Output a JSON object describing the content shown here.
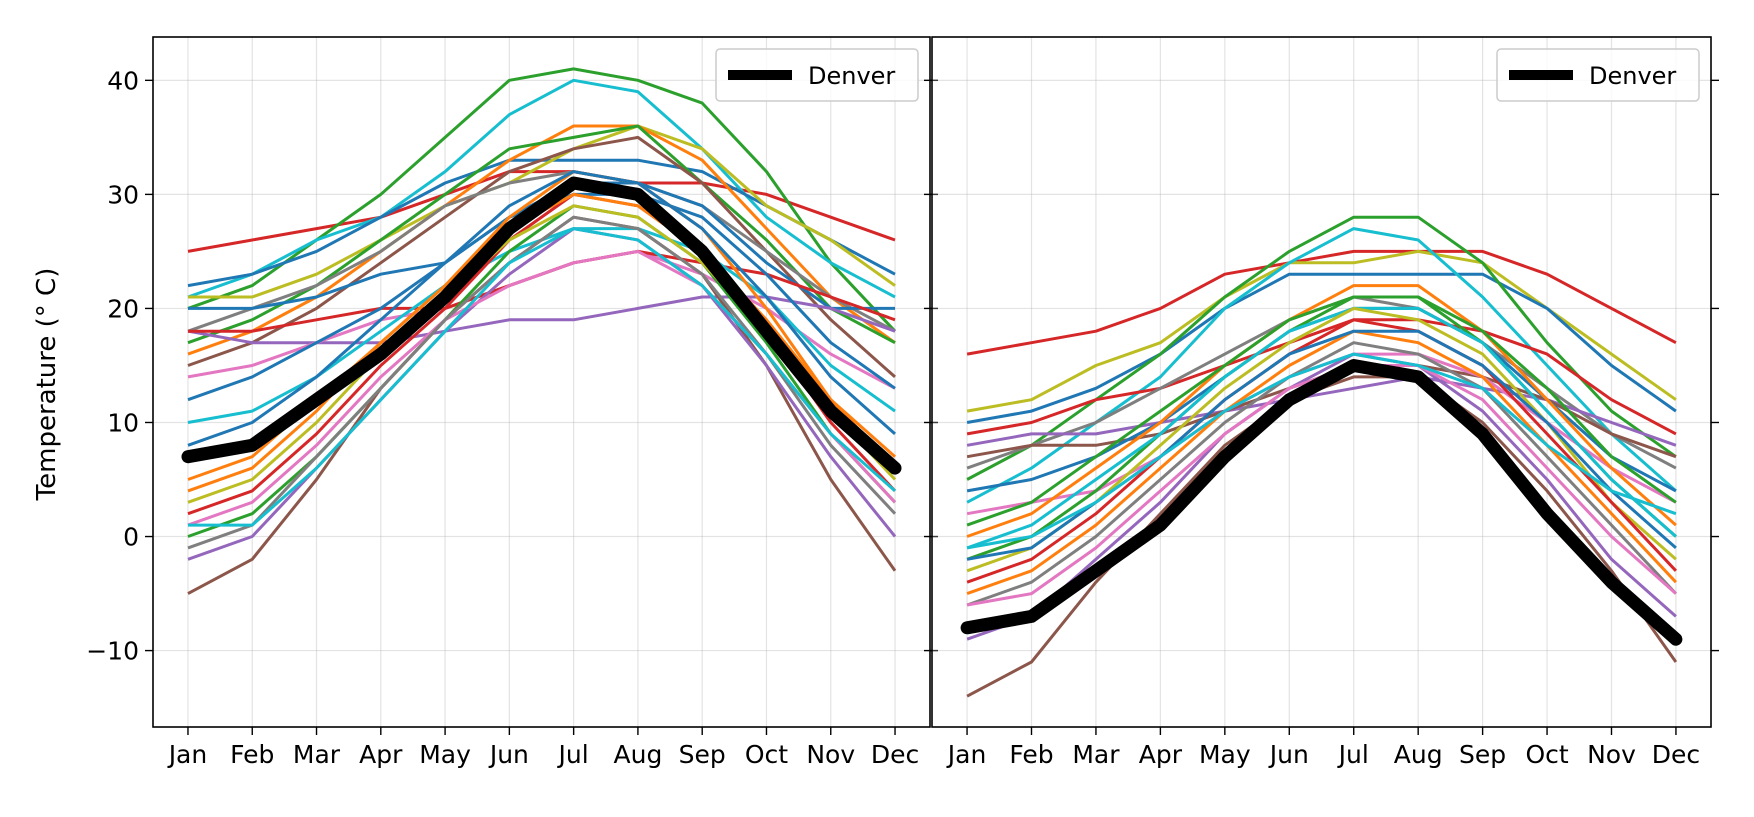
{
  "chart_data": [
    {
      "type": "line",
      "title": "",
      "xlabel": "",
      "ylabel": "Temperature (° C)",
      "categories": [
        "Jan",
        "Feb",
        "Mar",
        "Apr",
        "May",
        "Jun",
        "Jul",
        "Aug",
        "Sep",
        "Oct",
        "Nov",
        "Dec"
      ],
      "ylim": [
        -16.7,
        43.8
      ],
      "yticks": [
        -10,
        0,
        10,
        20,
        30,
        40
      ],
      "grid": true,
      "legend": {
        "position": "top-right",
        "entries": [
          "Denver"
        ]
      },
      "highlight": {
        "name": "Denver",
        "color": "#000000",
        "values": [
          7,
          8,
          12,
          16,
          21,
          27,
          31,
          30,
          25,
          18,
          11,
          6
        ]
      },
      "series": [
        {
          "color": "#d62728",
          "values": [
            25,
            26,
            27,
            28,
            30,
            32,
            32,
            31,
            31,
            30,
            28,
            26
          ]
        },
        {
          "color": "#2ca02c",
          "values": [
            20,
            22,
            26,
            30,
            35,
            40,
            41,
            40,
            38,
            32,
            24,
            18
          ]
        },
        {
          "color": "#17becf",
          "values": [
            21,
            23,
            26,
            28,
            32,
            37,
            40,
            39,
            34,
            28,
            24,
            21
          ]
        },
        {
          "color": "#1f77b4",
          "values": [
            22,
            23,
            25,
            28,
            31,
            33,
            33,
            33,
            32,
            29,
            26,
            23
          ]
        },
        {
          "color": "#bcbd22",
          "values": [
            21,
            21,
            23,
            26,
            29,
            31,
            34,
            36,
            34,
            29,
            26,
            22
          ]
        },
        {
          "color": "#ff7f0e",
          "values": [
            16,
            18,
            21,
            25,
            29,
            33,
            36,
            36,
            33,
            27,
            21,
            17
          ]
        },
        {
          "color": "#2ca02c",
          "values": [
            17,
            19,
            22,
            26,
            30,
            34,
            35,
            36,
            31,
            26,
            20,
            17
          ]
        },
        {
          "color": "#8c564b",
          "values": [
            15,
            17,
            20,
            24,
            28,
            32,
            34,
            35,
            31,
            25,
            19,
            14
          ]
        },
        {
          "color": "#7f7f7f",
          "values": [
            18,
            20,
            22,
            25,
            29,
            31,
            32,
            31,
            29,
            25,
            21,
            18
          ]
        },
        {
          "color": "#1f77b4",
          "values": [
            20,
            20,
            21,
            23,
            24,
            28,
            31,
            31,
            29,
            24,
            20,
            20
          ]
        },
        {
          "color": "#9467bd",
          "values": [
            18,
            17,
            17,
            17,
            18,
            19,
            19,
            20,
            21,
            21,
            20,
            18
          ]
        },
        {
          "color": "#e377c2",
          "values": [
            14,
            15,
            17,
            19,
            20,
            22,
            24,
            25,
            23,
            20,
            16,
            13
          ]
        },
        {
          "color": "#d62728",
          "values": [
            18,
            18,
            19,
            20,
            20,
            22,
            24,
            25,
            24,
            23,
            21,
            19
          ]
        },
        {
          "color": "#17becf",
          "values": [
            10,
            11,
            14,
            18,
            22,
            25,
            27,
            27,
            25,
            21,
            15,
            11
          ]
        },
        {
          "color": "#1f77b4",
          "values": [
            12,
            14,
            17,
            20,
            24,
            28,
            30,
            30,
            28,
            23,
            17,
            13
          ]
        },
        {
          "color": "#ff7f0e",
          "values": [
            5,
            7,
            12,
            17,
            22,
            28,
            32,
            31,
            27,
            20,
            12,
            6
          ]
        },
        {
          "color": "#2ca02c",
          "values": [
            0,
            2,
            7,
            13,
            19,
            25,
            29,
            28,
            24,
            17,
            9,
            3
          ]
        },
        {
          "color": "#d62728",
          "values": [
            2,
            4,
            9,
            15,
            20,
            26,
            30,
            29,
            25,
            18,
            10,
            4
          ]
        },
        {
          "color": "#8c564b",
          "values": [
            -5,
            -2,
            5,
            13,
            19,
            24,
            28,
            27,
            23,
            15,
            5,
            -3
          ]
        },
        {
          "color": "#9467bd",
          "values": [
            -2,
            0,
            6,
            12,
            18,
            23,
            27,
            26,
            22,
            15,
            7,
            0
          ]
        },
        {
          "color": "#e377c2",
          "values": [
            1,
            3,
            8,
            14,
            19,
            22,
            24,
            25,
            22,
            16,
            9,
            3
          ]
        },
        {
          "color": "#7f7f7f",
          "values": [
            -1,
            1,
            7,
            13,
            19,
            24,
            28,
            27,
            23,
            16,
            8,
            2
          ]
        },
        {
          "color": "#bcbd22",
          "values": [
            3,
            5,
            10,
            16,
            21,
            26,
            29,
            28,
            24,
            18,
            11,
            5
          ]
        },
        {
          "color": "#17becf",
          "values": [
            1,
            1,
            6,
            12,
            18,
            24,
            27,
            26,
            22,
            16,
            9,
            4
          ]
        },
        {
          "color": "#ff7f0e",
          "values": [
            4,
            6,
            11,
            17,
            22,
            27,
            30,
            29,
            25,
            19,
            12,
            7
          ]
        },
        {
          "color": "#1f77b4",
          "values": [
            8,
            10,
            14,
            19,
            24,
            29,
            32,
            31,
            27,
            21,
            14,
            9
          ]
        }
      ]
    },
    {
      "type": "line",
      "title": "",
      "xlabel": "",
      "ylabel": "",
      "categories": [
        "Jan",
        "Feb",
        "Mar",
        "Apr",
        "May",
        "Jun",
        "Jul",
        "Aug",
        "Sep",
        "Oct",
        "Nov",
        "Dec"
      ],
      "ylim": [
        -16.7,
        43.8
      ],
      "yticks": [
        -10,
        0,
        10,
        20,
        30,
        40
      ],
      "grid": true,
      "legend": {
        "position": "top-right",
        "entries": [
          "Denver"
        ]
      },
      "highlight": {
        "name": "Denver",
        "color": "#000000",
        "values": [
          -8,
          -7,
          -3,
          1,
          7,
          12,
          15,
          14,
          9,
          2,
          -4,
          -9
        ]
      },
      "series": [
        {
          "color": "#d62728",
          "values": [
            16,
            17,
            18,
            20,
            23,
            24,
            25,
            25,
            25,
            23,
            20,
            17
          ]
        },
        {
          "color": "#bcbd22",
          "values": [
            11,
            12,
            15,
            17,
            21,
            24,
            24,
            25,
            24,
            20,
            16,
            12
          ]
        },
        {
          "color": "#1f77b4",
          "values": [
            10,
            11,
            13,
            16,
            20,
            23,
            23,
            23,
            23,
            20,
            15,
            11
          ]
        },
        {
          "color": "#2ca02c",
          "values": [
            5,
            8,
            12,
            16,
            21,
            25,
            28,
            28,
            24,
            17,
            11,
            7
          ]
        },
        {
          "color": "#17becf",
          "values": [
            3,
            6,
            10,
            14,
            20,
            24,
            27,
            26,
            21,
            15,
            9,
            4
          ]
        },
        {
          "color": "#d62728",
          "values": [
            9,
            10,
            12,
            13,
            15,
            17,
            19,
            19,
            18,
            16,
            12,
            9
          ]
        },
        {
          "color": "#7f7f7f",
          "values": [
            6,
            8,
            10,
            13,
            16,
            19,
            21,
            20,
            17,
            13,
            9,
            6
          ]
        },
        {
          "color": "#9467bd",
          "values": [
            8,
            9,
            9,
            10,
            11,
            12,
            13,
            14,
            13,
            12,
            10,
            8
          ]
        },
        {
          "color": "#8c564b",
          "values": [
            7,
            8,
            8,
            9,
            11,
            13,
            15,
            15,
            14,
            12,
            9,
            7
          ]
        },
        {
          "color": "#e377c2",
          "values": [
            2,
            3,
            4,
            7,
            11,
            14,
            16,
            16,
            14,
            10,
            6,
            3
          ]
        },
        {
          "color": "#1f77b4",
          "values": [
            4,
            5,
            7,
            10,
            14,
            18,
            20,
            20,
            17,
            12,
            7,
            4
          ]
        },
        {
          "color": "#ff7f0e",
          "values": [
            0,
            2,
            6,
            10,
            15,
            19,
            22,
            22,
            18,
            12,
            6,
            1
          ]
        },
        {
          "color": "#2ca02c",
          "values": [
            -2,
            0,
            4,
            9,
            14,
            18,
            21,
            21,
            17,
            11,
            5,
            0
          ]
        },
        {
          "color": "#17becf",
          "values": [
            -1,
            1,
            5,
            9,
            14,
            18,
            20,
            20,
            17,
            11,
            5,
            0
          ]
        },
        {
          "color": "#bcbd22",
          "values": [
            -3,
            -1,
            3,
            8,
            13,
            17,
            20,
            19,
            16,
            10,
            3,
            -2
          ]
        },
        {
          "color": "#d62728",
          "values": [
            -4,
            -2,
            2,
            7,
            12,
            16,
            19,
            18,
            15,
            9,
            3,
            -3
          ]
        },
        {
          "color": "#ff7f0e",
          "values": [
            -5,
            -3,
            1,
            6,
            11,
            15,
            18,
            17,
            14,
            8,
            2,
            -4
          ]
        },
        {
          "color": "#7f7f7f",
          "values": [
            -6,
            -4,
            0,
            5,
            10,
            14,
            17,
            16,
            13,
            7,
            1,
            -5
          ]
        },
        {
          "color": "#9467bd",
          "values": [
            -9,
            -7,
            -2,
            3,
            9,
            13,
            16,
            15,
            11,
            5,
            -2,
            -7
          ]
        },
        {
          "color": "#8c564b",
          "values": [
            -14,
            -11,
            -4,
            2,
            8,
            12,
            14,
            14,
            10,
            4,
            -3,
            -11
          ]
        },
        {
          "color": "#e377c2",
          "values": [
            -6,
            -5,
            -1,
            4,
            9,
            13,
            15,
            15,
            12,
            6,
            0,
            -5
          ]
        },
        {
          "color": "#1f77b4",
          "values": [
            -2,
            -1,
            3,
            7,
            12,
            16,
            18,
            18,
            15,
            10,
            4,
            -1
          ]
        },
        {
          "color": "#2ca02c",
          "values": [
            1,
            3,
            7,
            11,
            15,
            19,
            21,
            21,
            18,
            13,
            7,
            3
          ]
        },
        {
          "color": "#17becf",
          "values": [
            -1,
            0,
            3,
            7,
            11,
            14,
            16,
            15,
            13,
            8,
            4,
            2
          ]
        }
      ]
    }
  ]
}
